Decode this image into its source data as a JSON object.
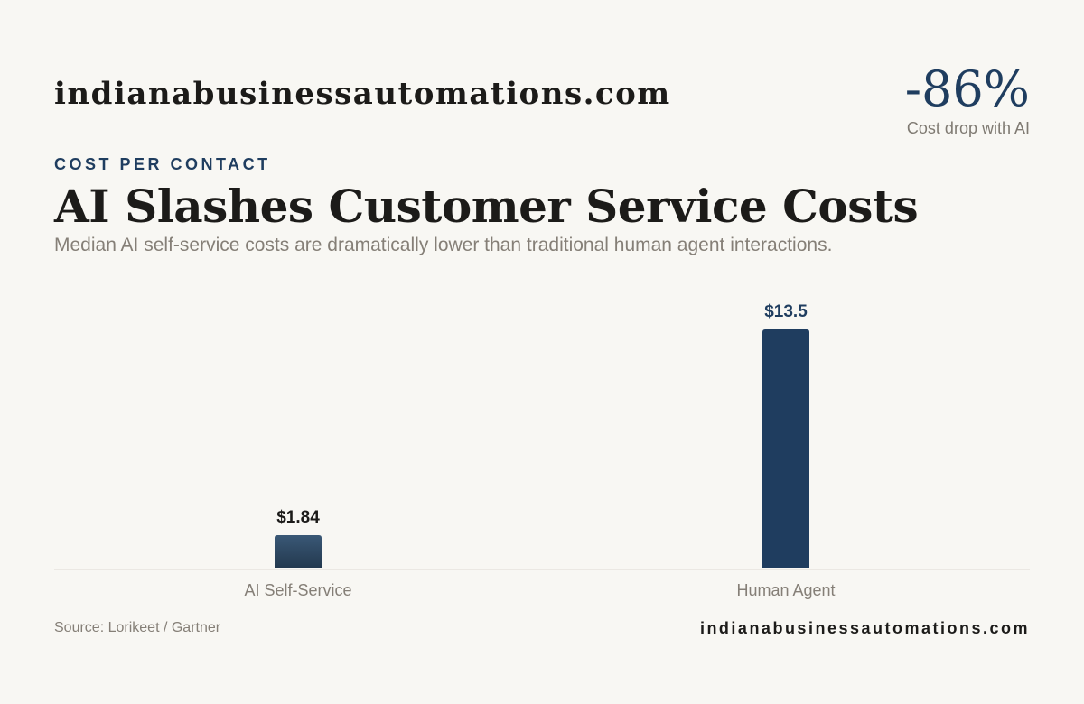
{
  "header": {
    "brand": "indianabusinessautomations.com",
    "stat_value": "-86%",
    "stat_caption": "Cost drop with AI"
  },
  "eyebrow": "COST PER CONTACT",
  "title": "AI Slashes Customer Service Costs",
  "subtitle": "Median AI self-service costs are dramatically lower than traditional human agent interactions.",
  "footer": {
    "source": "Source: Lorikeet / Gartner",
    "brand": "indianabusinessautomations.com"
  },
  "colors": {
    "primary": "#1f3d5f",
    "secondary_bar_top": "#3a5876",
    "secondary_bar_bottom": "#23394f",
    "background": "#f8f7f3"
  },
  "chart_data": {
    "type": "bar",
    "title": "AI Slashes Customer Service Costs",
    "xlabel": "",
    "ylabel": "",
    "categories": [
      "AI Self-Service",
      "Human Agent"
    ],
    "values": [
      1.84,
      13.5
    ],
    "value_labels": [
      "$1.84",
      "$13.5"
    ],
    "ylim": [
      0,
      13.5
    ],
    "grid": false,
    "legend": "none"
  }
}
